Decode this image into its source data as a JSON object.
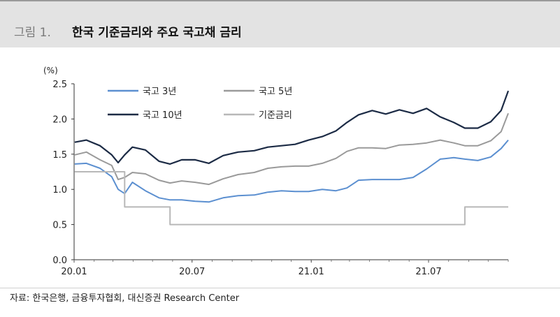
{
  "header": {
    "figure_label": "그림 1.",
    "title": "한국 기준금리와 주요 국고채 금리"
  },
  "source": "자료: 한국은행, 금융투자협회, 대신증권 Research Center",
  "colors": {
    "t3": "#5b8fd0",
    "t5": "#9a9a9a",
    "t10": "#1c2b45",
    "base": "#b8b8b8"
  },
  "chart_data": {
    "type": "line",
    "ylabel": "(%)",
    "ylim": [
      0.0,
      2.5
    ],
    "yticks": [
      "0.0",
      "0.5",
      "1.0",
      "1.5",
      "2.0",
      "2.5"
    ],
    "xticks": [
      "20.01",
      "20.07",
      "21.01",
      "21.07"
    ],
    "legend": [
      "국고 3년",
      "국고 5년",
      "국고 10년",
      "기준금리"
    ],
    "x": [
      "2020-01-02",
      "2020-01-20",
      "2020-02-10",
      "2020-02-28",
      "2020-03-09",
      "2020-03-19",
      "2020-03-31",
      "2020-04-20",
      "2020-05-11",
      "2020-05-28",
      "2020-06-15",
      "2020-07-06",
      "2020-07-27",
      "2020-08-18",
      "2020-09-10",
      "2020-10-05",
      "2020-10-26",
      "2020-11-16",
      "2020-12-07",
      "2020-12-28",
      "2021-01-18",
      "2021-02-08",
      "2021-02-25",
      "2021-03-15",
      "2021-04-05",
      "2021-04-26",
      "2021-05-17",
      "2021-06-07",
      "2021-06-28",
      "2021-07-19",
      "2021-08-09",
      "2021-08-26",
      "2021-09-15",
      "2021-10-05",
      "2021-10-21",
      "2021-11-01"
    ],
    "series": [
      {
        "name": "국고 3년",
        "values": [
          1.36,
          1.37,
          1.3,
          1.18,
          1.0,
          0.94,
          1.1,
          0.98,
          0.88,
          0.85,
          0.85,
          0.83,
          0.82,
          0.88,
          0.91,
          0.92,
          0.96,
          0.98,
          0.97,
          0.97,
          1.0,
          0.98,
          1.02,
          1.13,
          1.14,
          1.14,
          1.14,
          1.17,
          1.29,
          1.43,
          1.45,
          1.43,
          1.41,
          1.46,
          1.58,
          1.7
        ]
      },
      {
        "name": "국고 5년",
        "values": [
          1.49,
          1.53,
          1.42,
          1.34,
          1.14,
          1.17,
          1.24,
          1.22,
          1.13,
          1.09,
          1.12,
          1.1,
          1.07,
          1.15,
          1.21,
          1.24,
          1.3,
          1.32,
          1.33,
          1.33,
          1.37,
          1.44,
          1.54,
          1.59,
          1.59,
          1.58,
          1.63,
          1.64,
          1.66,
          1.7,
          1.66,
          1.62,
          1.62,
          1.69,
          1.82,
          2.08
        ]
      },
      {
        "name": "국고 10년",
        "values": [
          1.67,
          1.7,
          1.62,
          1.49,
          1.38,
          1.49,
          1.6,
          1.56,
          1.4,
          1.36,
          1.42,
          1.42,
          1.37,
          1.48,
          1.53,
          1.55,
          1.6,
          1.62,
          1.64,
          1.7,
          1.75,
          1.83,
          1.95,
          2.06,
          2.12,
          2.07,
          2.13,
          2.08,
          2.15,
          2.03,
          1.95,
          1.87,
          1.87,
          1.96,
          2.12,
          2.4
        ]
      },
      {
        "name": "기준금리",
        "values": [
          1.25,
          1.25,
          1.25,
          1.25,
          1.25,
          0.75,
          0.75,
          0.75,
          0.75,
          0.5,
          0.5,
          0.5,
          0.5,
          0.5,
          0.5,
          0.5,
          0.5,
          0.5,
          0.5,
          0.5,
          0.5,
          0.5,
          0.5,
          0.5,
          0.5,
          0.5,
          0.5,
          0.5,
          0.5,
          0.5,
          0.5,
          0.75,
          0.75,
          0.75,
          0.75,
          0.75
        ]
      }
    ]
  }
}
